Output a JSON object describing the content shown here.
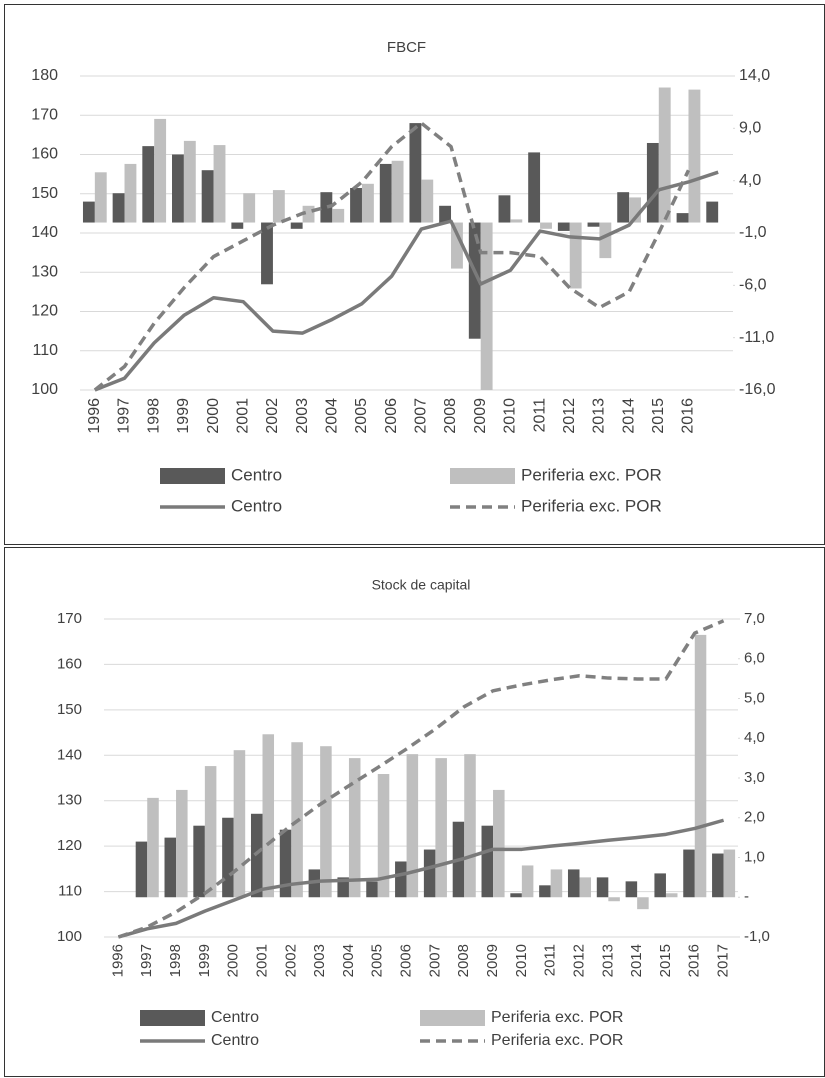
{
  "chart_data": [
    {
      "type": "combo",
      "title": "FBCF",
      "categories": [
        "1996",
        "1997",
        "1998",
        "1999",
        "2000",
        "2001",
        "2002",
        "2003",
        "2004",
        "2005",
        "2006",
        "2007",
        "2008",
        "2009",
        "2010",
        "2011",
        "2012",
        "2013",
        "2014",
        "2015",
        "2016",
        null
      ],
      "series": [
        {
          "name": "Centro",
          "type": "bar",
          "axis": "y2",
          "color": "#595959",
          "values": [
            2.0,
            2.8,
            7.3,
            6.5,
            5.0,
            -0.6,
            -5.9,
            -0.6,
            2.9,
            3.3,
            5.6,
            9.5,
            1.6,
            -11.1,
            2.6,
            6.7,
            -0.8,
            -0.4,
            2.9,
            7.6,
            0.9,
            2.0
          ]
        },
        {
          "name": "Periferia exc. POR",
          "type": "bar",
          "axis": "y2",
          "color": "#bfbfbf",
          "values": [
            4.8,
            5.6,
            9.9,
            7.8,
            7.4,
            2.8,
            3.1,
            1.6,
            1.3,
            3.7,
            5.9,
            4.1,
            -4.4,
            -16.0,
            0.3,
            -0.6,
            -6.3,
            -3.4,
            2.4,
            12.9,
            12.7,
            null
          ]
        },
        {
          "name": "Centro",
          "type": "line",
          "line_style": "solid",
          "color": "#7a7a7a",
          "values": [
            100,
            103,
            112,
            119,
            123.5,
            122.5,
            115,
            114.5,
            118,
            122,
            129,
            141,
            143,
            127,
            130.5,
            140.5,
            139,
            138.5,
            142,
            151,
            153,
            155.5
          ]
        },
        {
          "name": "Periferia exc. POR",
          "type": "line",
          "line_style": "dashed",
          "color": "#808080",
          "values": [
            100,
            106,
            117,
            126,
            134,
            138,
            142,
            145,
            147,
            153,
            162,
            168,
            162,
            135,
            135,
            134,
            126,
            121,
            125,
            140,
            156,
            null
          ]
        }
      ],
      "ylim": [
        100,
        180
      ],
      "yticks": [
        100,
        110,
        120,
        130,
        140,
        150,
        160,
        170,
        180
      ],
      "y2lim": [
        -16,
        14
      ],
      "y2ticks": [
        {
          "value": -16,
          "label": "-16,0"
        },
        {
          "value": -11,
          "label": "-11,0"
        },
        {
          "value": -6,
          "label": "-6,0"
        },
        {
          "value": -1,
          "label": "-1,0"
        },
        {
          "value": 4,
          "label": "4,0"
        },
        {
          "value": 9,
          "label": "9,0"
        },
        {
          "value": 14,
          "label": "14,0"
        }
      ],
      "grid": true
    },
    {
      "type": "combo",
      "title": "Stock de capital",
      "categories": [
        "1996",
        "1997",
        "1998",
        "1999",
        "2000",
        "2001",
        "2002",
        "2003",
        "2004",
        "2005",
        "2006",
        "2007",
        "2008",
        "2009",
        "2010",
        "2011",
        "2012",
        "2013",
        "2014",
        "2015",
        "2016",
        "2017"
      ],
      "series": [
        {
          "name": "Centro",
          "type": "bar",
          "axis": "y2",
          "color": "#595959",
          "values": [
            null,
            1.4,
            1.5,
            1.8,
            2.0,
            2.1,
            1.7,
            0.7,
            0.5,
            0.4,
            0.9,
            1.2,
            1.9,
            1.8,
            0.1,
            0.3,
            0.7,
            0.5,
            0.4,
            0.6,
            1.2,
            1.1
          ]
        },
        {
          "name": "Periferia exc. POR",
          "type": "bar",
          "axis": "y2",
          "color": "#bfbfbf",
          "values": [
            null,
            2.5,
            2.7,
            3.3,
            3.7,
            4.1,
            3.9,
            3.8,
            3.5,
            3.1,
            3.6,
            3.5,
            3.6,
            2.7,
            0.8,
            0.7,
            0.5,
            -0.1,
            -0.3,
            0.1,
            6.6,
            1.2
          ]
        },
        {
          "name": "Centro",
          "type": "line",
          "line_style": "solid",
          "color": "#7a7a7a",
          "values": [
            100,
            101.8,
            103,
            105.7,
            108.1,
            110.5,
            111.6,
            112.3,
            112.5,
            112.7,
            114,
            115.6,
            117.3,
            119.3,
            119.3,
            120,
            120.6,
            121.3,
            121.9,
            122.6,
            123.9,
            125.7
          ]
        },
        {
          "name": "Periferia exc. POR",
          "type": "line",
          "line_style": "dashed",
          "color": "#808080",
          "values": [
            100,
            102.2,
            105.5,
            109.6,
            114.3,
            119.5,
            124.6,
            129.2,
            133.3,
            137.3,
            141.4,
            145.8,
            150.7,
            154.2,
            155.5,
            156.6,
            157.5,
            157,
            156.8,
            156.8,
            166.9,
            169.6
          ]
        }
      ],
      "ylim": [
        100,
        170
      ],
      "yticks": [
        100,
        110,
        120,
        130,
        140,
        150,
        160,
        170
      ],
      "y2lim": [
        -1,
        7
      ],
      "y2ticks": [
        {
          "value": -1,
          "label": "-1,0"
        },
        {
          "value": 0,
          "label": "-"
        },
        {
          "value": 1,
          "label": "1,0"
        },
        {
          "value": 2,
          "label": "2,0"
        },
        {
          "value": 3,
          "label": "3,0"
        },
        {
          "value": 4,
          "label": "4,0"
        },
        {
          "value": 5,
          "label": "5,0"
        },
        {
          "value": 6,
          "label": "6,0"
        },
        {
          "value": 7,
          "label": "7,0"
        }
      ],
      "grid": true
    }
  ]
}
